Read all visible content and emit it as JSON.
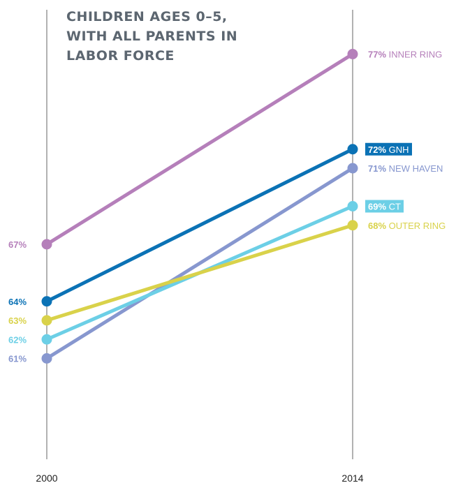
{
  "chart_data": {
    "type": "line",
    "title_lines": [
      "CHILDREN AGES 0–5,",
      "WITH ALL PARENTS IN",
      "LABOR FORCE"
    ],
    "x": [
      "2000",
      "2014"
    ],
    "series": [
      {
        "name": "INNER RING",
        "values": [
          67,
          77
        ],
        "color": "#b57fba",
        "start_label": "67%",
        "end_pct": "77%",
        "highlight": false
      },
      {
        "name": "GNH",
        "values": [
          64,
          72
        ],
        "color": "#0b72b5",
        "start_label": "64%",
        "end_pct": "72%",
        "highlight": true
      },
      {
        "name": "NEW HAVEN",
        "values": [
          61,
          71
        ],
        "color": "#8797cf",
        "start_label": "61%",
        "end_pct": "71%",
        "highlight": false
      },
      {
        "name": "CT",
        "values": [
          62,
          69
        ],
        "color": "#6ccfe6",
        "start_label": "62%",
        "end_pct": "69%",
        "highlight": true
      },
      {
        "name": "OUTER RING",
        "values": [
          63,
          68
        ],
        "color": "#d9d24a",
        "start_label": "63%",
        "end_pct": "68%",
        "highlight": false
      }
    ],
    "grid": false,
    "legend": "end-of-line labels"
  }
}
